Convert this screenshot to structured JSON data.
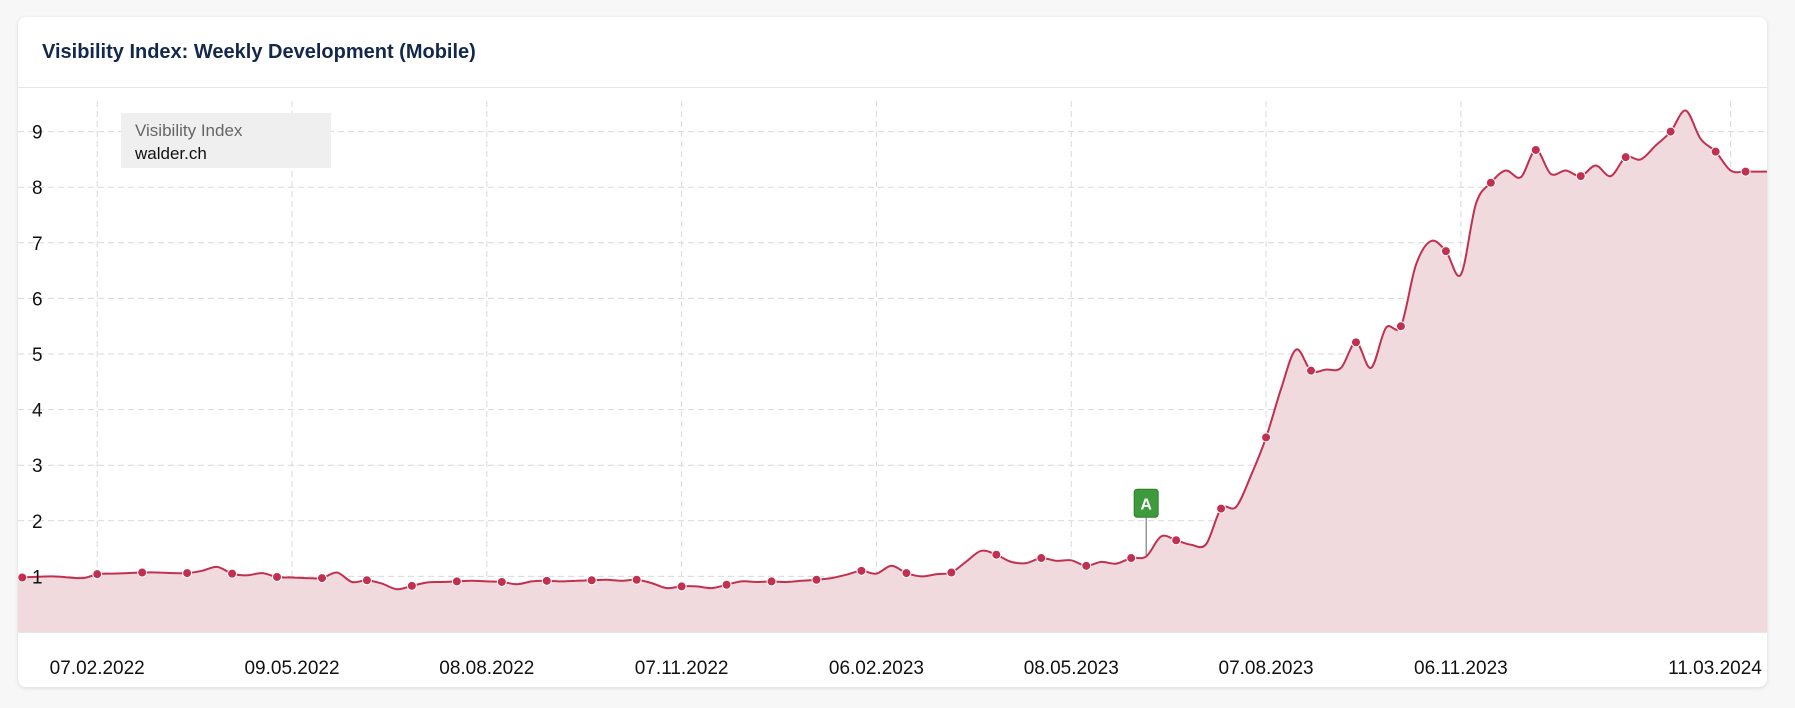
{
  "page": {
    "title": "Visibility Index: Weekly Development (Mobile)"
  },
  "legend": {
    "title": "Visibility Index",
    "domain": "walder.ch"
  },
  "colors": {
    "line": "#c2304f",
    "area": "#f0dade",
    "title": "#14284b",
    "event_marker": "#3d9a3d"
  },
  "chart_data": {
    "type": "area",
    "ylim": [
      0,
      9.5
    ],
    "yticks": [
      1,
      2,
      3,
      4,
      5,
      6,
      7,
      8,
      9
    ],
    "ytick_labels": [
      "1",
      "2",
      "3",
      "4",
      "5",
      "6",
      "7",
      "8",
      "9"
    ],
    "xlim": [
      "2022-01-01",
      "2024-03-28"
    ],
    "xticks": [
      "2022-02-07",
      "2022-05-09",
      "2022-08-08",
      "2022-11-07",
      "2023-02-06",
      "2023-05-08",
      "2023-08-07",
      "2023-11-06",
      "2024-03-11"
    ],
    "xtick_labels": [
      "07.02.2022",
      "09.05.2022",
      "08.08.2022",
      "07.11.2022",
      "06.02.2023",
      "08.05.2023",
      "07.08.2023",
      "06.11.2023",
      "11.03.2024"
    ],
    "grid": true,
    "legend_position": "top-left",
    "series": [
      {
        "name": "walder.ch",
        "points": [
          [
            "2022-01-03",
            0.98
          ],
          [
            "2022-01-17",
            1.0
          ],
          [
            "2022-01-31",
            0.97
          ],
          [
            "2022-02-07",
            1.04
          ],
          [
            "2022-02-14",
            1.05
          ],
          [
            "2022-02-21",
            1.06
          ],
          [
            "2022-02-28",
            1.07
          ],
          [
            "2022-03-07",
            1.07
          ],
          [
            "2022-03-14",
            1.06
          ],
          [
            "2022-03-21",
            1.06
          ],
          [
            "2022-03-28",
            1.1
          ],
          [
            "2022-04-04",
            1.17
          ],
          [
            "2022-04-11",
            1.05
          ],
          [
            "2022-04-18",
            1.02
          ],
          [
            "2022-04-25",
            1.06
          ],
          [
            "2022-05-02",
            0.99
          ],
          [
            "2022-05-09",
            0.98
          ],
          [
            "2022-05-16",
            0.97
          ],
          [
            "2022-05-23",
            0.97
          ],
          [
            "2022-05-30",
            1.07
          ],
          [
            "2022-06-06",
            0.9
          ],
          [
            "2022-06-13",
            0.93
          ],
          [
            "2022-06-20",
            0.87
          ],
          [
            "2022-06-27",
            0.77
          ],
          [
            "2022-07-04",
            0.83
          ],
          [
            "2022-07-11",
            0.89
          ],
          [
            "2022-07-18",
            0.9
          ],
          [
            "2022-07-25",
            0.91
          ],
          [
            "2022-08-01",
            0.92
          ],
          [
            "2022-08-08",
            0.91
          ],
          [
            "2022-08-15",
            0.9
          ],
          [
            "2022-08-22",
            0.86
          ],
          [
            "2022-08-29",
            0.91
          ],
          [
            "2022-09-05",
            0.92
          ],
          [
            "2022-09-12",
            0.91
          ],
          [
            "2022-09-19",
            0.92
          ],
          [
            "2022-09-26",
            0.93
          ],
          [
            "2022-10-03",
            0.94
          ],
          [
            "2022-10-10",
            0.92
          ],
          [
            "2022-10-17",
            0.94
          ],
          [
            "2022-10-24",
            0.88
          ],
          [
            "2022-10-31",
            0.79
          ],
          [
            "2022-11-07",
            0.82
          ],
          [
            "2022-11-14",
            0.82
          ],
          [
            "2022-11-21",
            0.79
          ],
          [
            "2022-11-28",
            0.85
          ],
          [
            "2022-12-05",
            0.91
          ],
          [
            "2022-12-12",
            0.9
          ],
          [
            "2022-12-19",
            0.91
          ],
          [
            "2022-12-26",
            0.9
          ],
          [
            "2023-01-02",
            0.92
          ],
          [
            "2023-01-09",
            0.94
          ],
          [
            "2023-01-16",
            0.97
          ],
          [
            "2023-01-23",
            1.03
          ],
          [
            "2023-01-30",
            1.1
          ],
          [
            "2023-02-06",
            1.05
          ],
          [
            "2023-02-13",
            1.19
          ],
          [
            "2023-02-20",
            1.06
          ],
          [
            "2023-02-27",
            1.0
          ],
          [
            "2023-03-06",
            1.04
          ],
          [
            "2023-03-13",
            1.07
          ],
          [
            "2023-03-20",
            1.27
          ],
          [
            "2023-03-27",
            1.46
          ],
          [
            "2023-04-03",
            1.39
          ],
          [
            "2023-04-10",
            1.26
          ],
          [
            "2023-04-17",
            1.24
          ],
          [
            "2023-04-24",
            1.33
          ],
          [
            "2023-05-01",
            1.28
          ],
          [
            "2023-05-08",
            1.29
          ],
          [
            "2023-05-15",
            1.19
          ],
          [
            "2023-05-22",
            1.26
          ],
          [
            "2023-05-29",
            1.23
          ],
          [
            "2023-06-05",
            1.33
          ],
          [
            "2023-06-12",
            1.36
          ],
          [
            "2023-06-19",
            1.72
          ],
          [
            "2023-06-26",
            1.65
          ],
          [
            "2023-07-03",
            1.57
          ],
          [
            "2023-07-10",
            1.58
          ],
          [
            "2023-07-17",
            2.22
          ],
          [
            "2023-07-24",
            2.25
          ],
          [
            "2023-07-31",
            2.82
          ],
          [
            "2023-08-07",
            3.5
          ],
          [
            "2023-08-14",
            4.37
          ],
          [
            "2023-08-21",
            5.08
          ],
          [
            "2023-08-28",
            4.7
          ],
          [
            "2023-09-04",
            4.72
          ],
          [
            "2023-09-11",
            4.75
          ],
          [
            "2023-09-18",
            5.21
          ],
          [
            "2023-09-25",
            4.75
          ],
          [
            "2023-10-02",
            5.47
          ],
          [
            "2023-10-09",
            5.5
          ],
          [
            "2023-10-16",
            6.6
          ],
          [
            "2023-10-23",
            7.03
          ],
          [
            "2023-10-30",
            6.85
          ],
          [
            "2023-11-06",
            6.43
          ],
          [
            "2023-11-13",
            7.7
          ],
          [
            "2023-11-20",
            8.08
          ],
          [
            "2023-11-27",
            8.3
          ],
          [
            "2023-12-04",
            8.18
          ],
          [
            "2023-12-11",
            8.67
          ],
          [
            "2023-12-18",
            8.24
          ],
          [
            "2023-12-25",
            8.3
          ],
          [
            "2024-01-01",
            8.2
          ],
          [
            "2024-01-08",
            8.39
          ],
          [
            "2024-01-15",
            8.2
          ],
          [
            "2024-01-22",
            8.54
          ],
          [
            "2024-01-29",
            8.5
          ],
          [
            "2024-02-05",
            8.75
          ],
          [
            "2024-02-12",
            9.0
          ],
          [
            "2024-02-19",
            9.38
          ],
          [
            "2024-02-26",
            8.87
          ],
          [
            "2024-03-04",
            8.64
          ],
          [
            "2024-03-11",
            8.3
          ],
          [
            "2024-03-18",
            8.28
          ]
        ]
      }
    ],
    "annotations": [
      {
        "label": "A",
        "x": "2023-06-12",
        "y": 1.38
      }
    ]
  }
}
